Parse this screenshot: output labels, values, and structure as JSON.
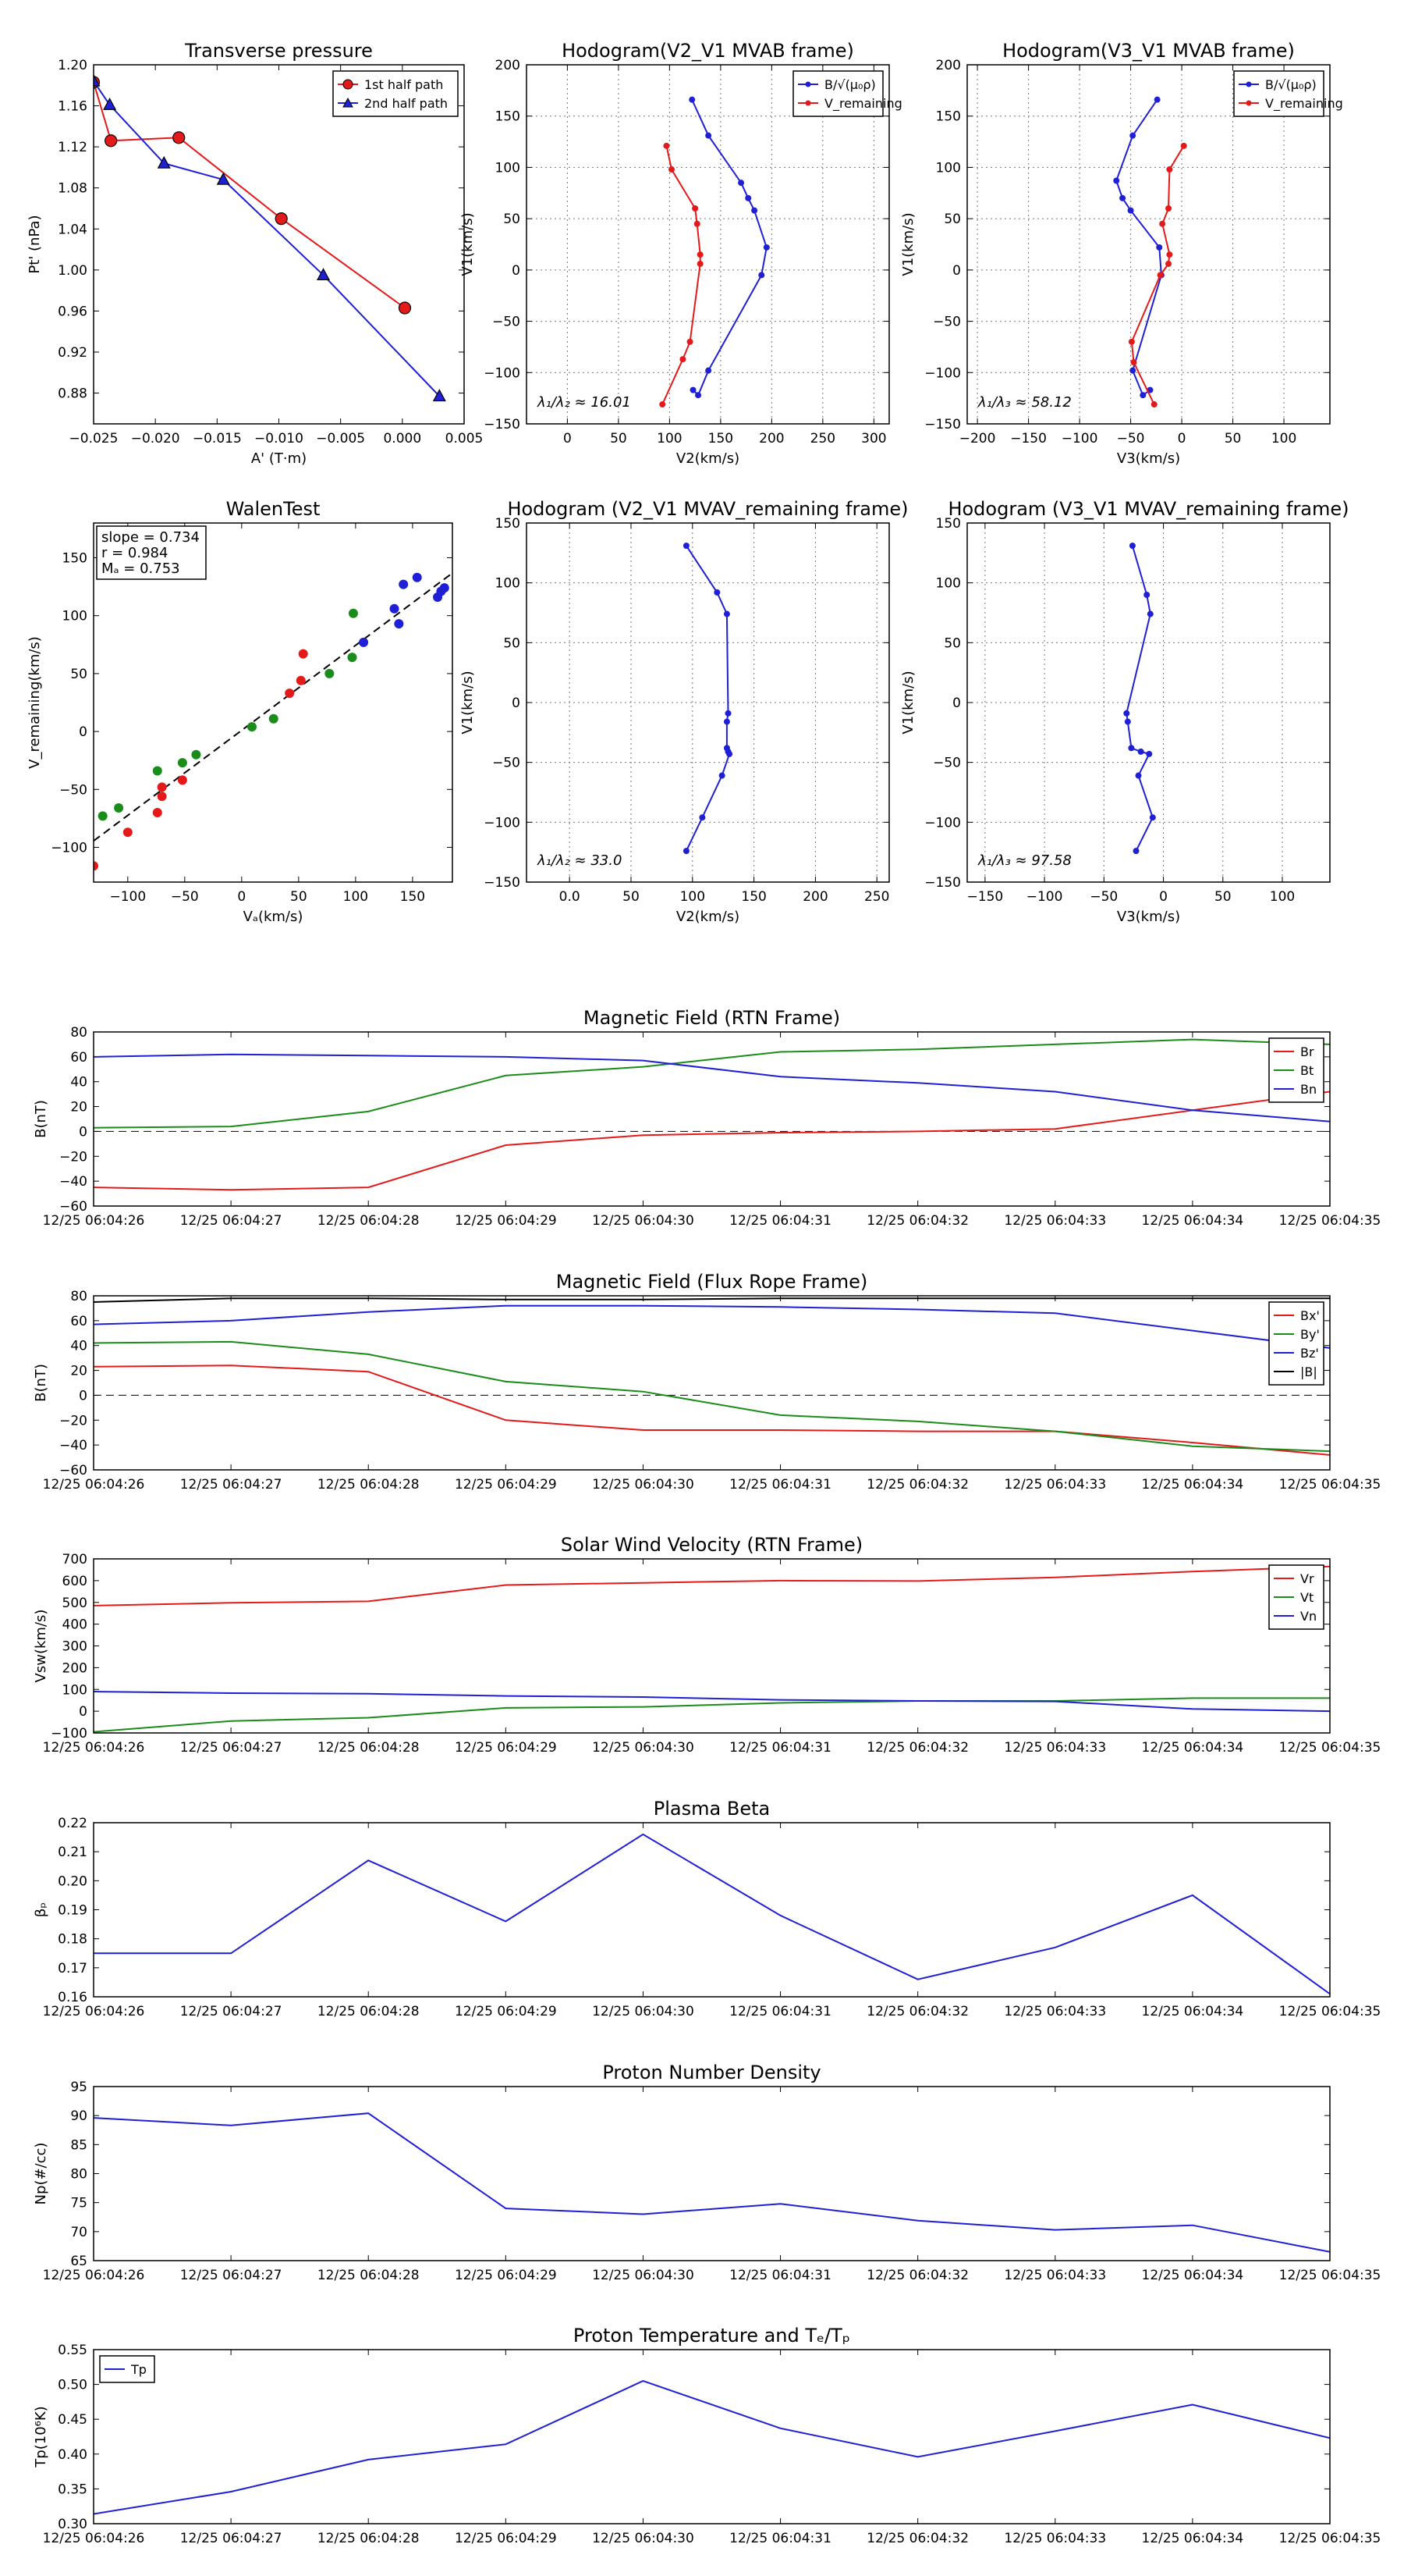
{
  "chart_data": [
    {
      "id": "transverse-pressure",
      "type": "line",
      "marker": "series",
      "title": "Transverse pressure",
      "xlabel": "A' (T·m)",
      "ylabel": "Pt' (nPa)",
      "xlim": [
        -0.025,
        0.005
      ],
      "ylim": [
        0.85,
        1.2
      ],
      "xticks": [
        -0.025,
        -0.02,
        -0.015,
        -0.01,
        -0.005,
        0.0,
        0.005
      ],
      "xticklabels": [
        "−0.025",
        "−0.020",
        "−0.015",
        "−0.010",
        "−0.005",
        "0.000",
        "0.005"
      ],
      "yticks": [
        0.88,
        0.92,
        0.96,
        1.0,
        1.04,
        1.08,
        1.12,
        1.16,
        1.2
      ],
      "yticklabels": [
        "0.88",
        "0.92",
        "0.96",
        "1.00",
        "1.04",
        "1.08",
        "1.12",
        "1.16",
        "1.20"
      ],
      "grid": false,
      "legend_loc": "top-right",
      "series": [
        {
          "name": "1st half path",
          "color": "#e41a1a",
          "marker": "circle",
          "x": [
            -0.025,
            -0.0236,
            -0.0181,
            -0.0098,
            0.0002
          ],
          "y": [
            1.183,
            1.126,
            1.129,
            1.05,
            0.963
          ]
        },
        {
          "name": "2nd half path",
          "color": "#1f1fd6",
          "marker": "triangle",
          "x": [
            -0.025,
            -0.0237,
            -0.0193,
            -0.0145,
            -0.0064,
            0.003
          ],
          "y": [
            1.184,
            1.161,
            1.104,
            1.088,
            0.995,
            0.877
          ]
        }
      ]
    },
    {
      "id": "hodogram-v2v1-mvab",
      "type": "line",
      "marker": "dot",
      "title": "Hodogram(V2_V1 MVAB frame)",
      "xlabel": "V2(km/s)",
      "ylabel": "V1(km/s)",
      "xlim": [
        -40,
        315
      ],
      "ylim": [
        -150,
        200
      ],
      "xticks": [
        0,
        50,
        100,
        150,
        200,
        250,
        300
      ],
      "xticklabels": [
        "0",
        "50",
        "100",
        "150",
        "200",
        "250",
        "300"
      ],
      "yticks": [
        -150,
        -100,
        -50,
        0,
        50,
        100,
        150,
        200
      ],
      "yticklabels": [
        "−150",
        "−100",
        "−50",
        "0",
        "50",
        "100",
        "150",
        "200"
      ],
      "grid": true,
      "legend_loc": "top-right",
      "annotation": "λ₁/λ₂ ≈ 16.01",
      "series": [
        {
          "name": "B/√(μ₀ρ)",
          "color": "#1f1fd6",
          "x": [
            122,
            138,
            170,
            177,
            183,
            195,
            190,
            138,
            128,
            123
          ],
          "y": [
            166,
            131,
            85,
            70,
            58,
            22,
            -5,
            -98,
            -122,
            -117
          ]
        },
        {
          "name": "V_remaining",
          "color": "#e41a1a",
          "x": [
            97,
            102,
            125,
            127,
            130,
            130,
            120,
            113,
            93
          ],
          "y": [
            121,
            98,
            60,
            45,
            15,
            6,
            -70,
            -87,
            -131
          ]
        }
      ]
    },
    {
      "id": "hodogram-v3v1-mvab",
      "type": "line",
      "marker": "dot",
      "title": "Hodogram(V3_V1 MVAB frame)",
      "xlabel": "V3(km/s)",
      "ylabel": "V1(km/s)",
      "xlim": [
        -210,
        145
      ],
      "ylim": [
        -150,
        200
      ],
      "xticks": [
        -200,
        -150,
        -100,
        -50,
        0,
        50,
        100
      ],
      "xticklabels": [
        "−200",
        "−150",
        "−100",
        "−50",
        "0",
        "50",
        "100"
      ],
      "yticks": [
        -150,
        -100,
        -50,
        0,
        50,
        100,
        150,
        200
      ],
      "yticklabels": [
        "−150",
        "−100",
        "−50",
        "0",
        "50",
        "100",
        "150",
        "200"
      ],
      "grid": true,
      "legend_loc": "top-right",
      "annotation": "λ₁/λ₃ ≈ 58.12",
      "series": [
        {
          "name": "B/√(μ₀ρ)",
          "color": "#1f1fd6",
          "x": [
            -24,
            -48,
            -64,
            -58,
            -50,
            -22,
            -20,
            -48,
            -38,
            -31
          ],
          "y": [
            166,
            131,
            87,
            70,
            58,
            22,
            -5,
            -98,
            -122,
            -117
          ]
        },
        {
          "name": "V_remaining",
          "color": "#e41a1a",
          "x": [
            2,
            -12,
            -13,
            -19,
            -12,
            -13,
            -21,
            -49,
            -47,
            -27
          ],
          "y": [
            121,
            98,
            60,
            45,
            15,
            6,
            -5,
            -70,
            -90,
            -131
          ]
        }
      ]
    },
    {
      "id": "walen-test",
      "type": "scatter",
      "marker": "dot-large",
      "title": "WalenTest",
      "xlabel": "Vₐ(km/s)",
      "ylabel": "V_remaining(km/s)",
      "xlim": [
        -130,
        185
      ],
      "ylim": [
        -130,
        180
      ],
      "xticks": [
        -100,
        -50,
        0,
        50,
        100,
        150
      ],
      "xticklabels": [
        "−100",
        "−50",
        "0",
        "50",
        "100",
        "150"
      ],
      "yticks": [
        -100,
        -50,
        0,
        50,
        100,
        150
      ],
      "yticklabels": [
        "−100",
        "−50",
        "0",
        "50",
        "100",
        "150"
      ],
      "grid": false,
      "legend_loc": "top-left",
      "fit": {
        "slope": 0.734,
        "intercept": 1.0
      },
      "stats": [
        "slope = 0.734",
        "r = 0.984",
        "Mₐ = 0.753"
      ],
      "series": [
        {
          "name": "red",
          "color": "#e41a1a",
          "x": [
            -130,
            -100,
            -74,
            -70,
            -70,
            -52,
            42,
            52,
            54
          ],
          "y": [
            -116,
            -87,
            -70,
            -56,
            -48,
            -42,
            33,
            44,
            67
          ]
        },
        {
          "name": "green",
          "color": "#1a8c1a",
          "x": [
            -122,
            -108,
            -74,
            -52,
            -40,
            9,
            28,
            77,
            97,
            98
          ],
          "y": [
            -73,
            -66,
            -34,
            -27,
            -20,
            4,
            11,
            50,
            64,
            102
          ]
        },
        {
          "name": "blue",
          "color": "#1f1fd6",
          "x": [
            107,
            134,
            138,
            142,
            154,
            172,
            175,
            178
          ],
          "y": [
            77,
            106,
            93,
            127,
            133,
            116,
            121,
            124
          ]
        }
      ]
    },
    {
      "id": "hodogram-v2v1-mvav",
      "type": "line",
      "marker": "dot",
      "title": "Hodogram (V2_V1 MVAV_remaining frame)",
      "xlabel": "V2(km/s)",
      "ylabel": "V1(km/s)",
      "xlim": [
        -35,
        260
      ],
      "ylim": [
        -150,
        150
      ],
      "xticks": [
        0,
        50,
        100,
        150,
        200,
        250
      ],
      "xticklabels": [
        "0.0",
        "50",
        "100",
        "150",
        "200",
        "250"
      ],
      "yticks": [
        -150,
        -100,
        -50,
        0,
        50,
        100,
        150
      ],
      "yticklabels": [
        "−150",
        "−100",
        "−50",
        "0",
        "50",
        "100",
        "150"
      ],
      "grid": true,
      "legend_loc": "none",
      "annotation": "λ₁/λ₂ ≈ 33.0",
      "series": [
        {
          "name": "V_remaining",
          "color": "#1f1fd6",
          "x": [
            95,
            120,
            128,
            129,
            128,
            128,
            129,
            130,
            124,
            108,
            95
          ],
          "y": [
            131,
            92,
            74,
            -9,
            -16,
            -38,
            -41,
            -43,
            -61,
            -96,
            -124
          ]
        }
      ]
    },
    {
      "id": "hodogram-v3v1-mvav",
      "type": "line",
      "marker": "dot",
      "title": "Hodogram (V3_V1 MVAV_remaining frame)",
      "xlabel": "V3(km/s)",
      "ylabel": "V1(km/s)",
      "xlim": [
        -165,
        140
      ],
      "ylim": [
        -150,
        150
      ],
      "xticks": [
        -150,
        -100,
        -50,
        0,
        50,
        100
      ],
      "xticklabels": [
        "−150",
        "−100",
        "−50",
        "0",
        "50",
        "100"
      ],
      "yticks": [
        -150,
        -100,
        -50,
        0,
        50,
        100,
        150
      ],
      "yticklabels": [
        "−150",
        "−100",
        "−50",
        "0",
        "50",
        "100",
        "150"
      ],
      "grid": true,
      "legend_loc": "none",
      "annotation": "λ₁/λ₃ ≈ 97.58",
      "series": [
        {
          "name": "V_remaining",
          "color": "#1f1fd6",
          "x": [
            -26,
            -14,
            -11,
            -31,
            -30,
            -27,
            -19,
            -12,
            -21,
            -9,
            -23
          ],
          "y": [
            131,
            90,
            74,
            -9,
            -16,
            -38,
            -41,
            -43,
            -61,
            -96,
            -124
          ]
        }
      ]
    },
    {
      "id": "magnetic-field-rtn",
      "type": "line",
      "title": "Magnetic Field (RTN Frame)",
      "xlabel": "",
      "ylabel": "B(nT)",
      "ylim": [
        -60,
        80
      ],
      "yticks": [
        -60,
        -40,
        -20,
        0,
        20,
        40,
        60,
        80
      ],
      "yticklabels": [
        "−60",
        "−40",
        "−20",
        "0",
        "20",
        "40",
        "60",
        "80"
      ],
      "zero_line": true,
      "grid": false,
      "legend_loc": "top-right",
      "series": [
        {
          "name": "Br",
          "color": "#e41a1a",
          "values": [
            -45,
            -47,
            -45,
            -11,
            -3,
            -1,
            0,
            2,
            17,
            32
          ]
        },
        {
          "name": "Bt",
          "color": "#1a8c1a",
          "values": [
            3,
            4,
            16,
            45,
            52,
            64,
            66,
            70,
            74,
            70
          ]
        },
        {
          "name": "Bn",
          "color": "#1f1fd6",
          "values": [
            60,
            62,
            61,
            60,
            57,
            44,
            39,
            32,
            17,
            8
          ]
        }
      ]
    },
    {
      "id": "magnetic-field-flux-rope",
      "type": "line",
      "title": "Magnetic Field (Flux Rope Frame)",
      "xlabel": "",
      "ylabel": "B(nT)",
      "ylim": [
        -60,
        80
      ],
      "yticks": [
        -60,
        -40,
        -20,
        0,
        20,
        40,
        60,
        80
      ],
      "yticklabels": [
        "−60",
        "−40",
        "−20",
        "0",
        "20",
        "40",
        "60",
        "80"
      ],
      "zero_line": true,
      "grid": false,
      "legend_loc": "top-right",
      "series": [
        {
          "name": "Bx'",
          "color": "#e41a1a",
          "values": [
            23,
            24,
            19,
            -20,
            -28,
            -28,
            -29,
            -29,
            -38,
            -48
          ]
        },
        {
          "name": "By'",
          "color": "#1a8c1a",
          "values": [
            42,
            43,
            33,
            11,
            3,
            -16,
            -21,
            -29,
            -41,
            -45
          ]
        },
        {
          "name": "Bz'",
          "color": "#1f1fd6",
          "values": [
            57,
            60,
            67,
            72,
            72,
            71,
            69,
            66,
            52,
            38
          ]
        },
        {
          "name": "|B|",
          "color": "#000000",
          "values": [
            75,
            78,
            78,
            77,
            77,
            78,
            78,
            78,
            78,
            78
          ]
        }
      ]
    },
    {
      "id": "solar-wind-velocity",
      "type": "line",
      "title": "Solar Wind Velocity (RTN Frame)",
      "xlabel": "",
      "ylabel": "Vsw(km/s)",
      "ylim": [
        -100,
        700
      ],
      "yticks": [
        -100,
        0,
        100,
        200,
        300,
        400,
        500,
        600,
        700
      ],
      "yticklabels": [
        "−100",
        "0",
        "100",
        "200",
        "300",
        "400",
        "500",
        "600",
        "700"
      ],
      "zero_line": false,
      "grid": false,
      "legend_loc": "top-right",
      "series": [
        {
          "name": "Vr",
          "color": "#e41a1a",
          "values": [
            485,
            498,
            505,
            580,
            590,
            600,
            598,
            615,
            642,
            665
          ]
        },
        {
          "name": "Vt",
          "color": "#1a8c1a",
          "values": [
            -95,
            -45,
            -30,
            15,
            20,
            38,
            47,
            47,
            60,
            60
          ]
        },
        {
          "name": "Vn",
          "color": "#1f1fd6",
          "values": [
            90,
            83,
            80,
            70,
            65,
            52,
            47,
            45,
            10,
            0
          ]
        }
      ]
    },
    {
      "id": "plasma-beta",
      "type": "line",
      "title": "Plasma Beta",
      "xlabel": "",
      "ylabel": "βₚ",
      "ylim": [
        0.16,
        0.22
      ],
      "yticks": [
        0.16,
        0.17,
        0.18,
        0.19,
        0.2,
        0.21,
        0.22
      ],
      "yticklabels": [
        "0.16",
        "0.17",
        "0.18",
        "0.19",
        "0.20",
        "0.21",
        "0.22"
      ],
      "zero_line": false,
      "grid": false,
      "legend_loc": "none",
      "series": [
        {
          "name": "beta",
          "color": "#1f1fd6",
          "values": [
            0.175,
            0.175,
            0.207,
            0.186,
            0.216,
            0.188,
            0.166,
            0.177,
            0.195,
            0.161
          ]
        }
      ]
    },
    {
      "id": "proton-number-density",
      "type": "line",
      "title": "Proton Number Density",
      "xlabel": "",
      "ylabel": "Np(#/cc)",
      "ylim": [
        65,
        95
      ],
      "yticks": [
        65,
        70,
        75,
        80,
        85,
        90,
        95
      ],
      "yticklabels": [
        "65",
        "70",
        "75",
        "80",
        "85",
        "90",
        "95"
      ],
      "zero_line": false,
      "grid": false,
      "legend_loc": "none",
      "series": [
        {
          "name": "Np",
          "color": "#1f1fd6",
          "values": [
            89.6,
            88.3,
            90.4,
            74.0,
            73.0,
            74.8,
            71.9,
            70.3,
            71.1,
            66.5
          ]
        }
      ]
    },
    {
      "id": "proton-temperature",
      "type": "line",
      "title": "Proton Temperature and Tₑ/Tₚ",
      "xlabel": "",
      "ylabel": "Tp(10⁶K)",
      "ylim": [
        0.3,
        0.55
      ],
      "yticks": [
        0.3,
        0.35,
        0.4,
        0.45,
        0.5,
        0.55
      ],
      "yticklabels": [
        "0.30",
        "0.35",
        "0.40",
        "0.45",
        "0.50",
        "0.55"
      ],
      "zero_line": false,
      "grid": false,
      "legend_loc": "top-left",
      "series": [
        {
          "name": "Tp",
          "color": "#1f1fd6",
          "values": [
            0.314,
            0.346,
            0.392,
            0.414,
            0.505,
            0.437,
            0.396,
            0.433,
            0.471,
            0.423
          ]
        }
      ]
    }
  ],
  "time_axis": {
    "labels": [
      "12/25 06:04:26",
      "12/25 06:04:27",
      "12/25 06:04:28",
      "12/25 06:04:29",
      "12/25 06:04:30",
      "12/25 06:04:31",
      "12/25 06:04:32",
      "12/25 06:04:33",
      "12/25 06:04:34",
      "12/25 06:04:35"
    ]
  }
}
